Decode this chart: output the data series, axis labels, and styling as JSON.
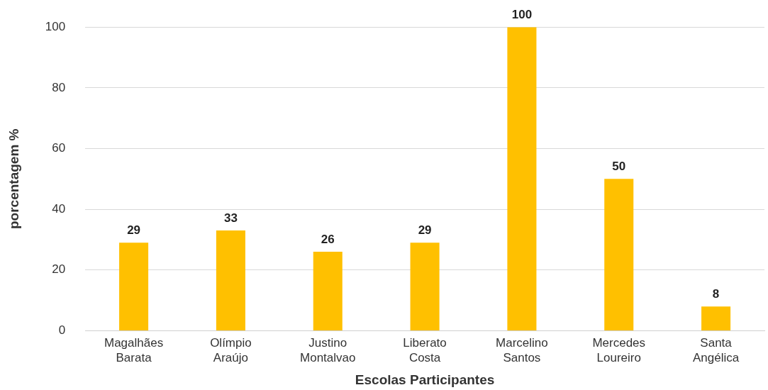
{
  "chart_data": {
    "type": "bar",
    "xlabel": "Escolas Participantes",
    "ylabel": "porcentagem %",
    "categories": [
      "Magalhães Barata",
      "Olímpio Araújo",
      "Justino Montalvao",
      "Liberato Costa",
      "Marcelino Santos",
      "Mercedes Loureiro",
      "Santa Angélica"
    ],
    "values": [
      29,
      33,
      26,
      29,
      100,
      50,
      8
    ],
    "color": "#ffc000",
    "ylim": [
      0,
      100
    ],
    "yticks": [
      0,
      20,
      40,
      60,
      80,
      100
    ],
    "grid": "y",
    "data_labels": true
  }
}
